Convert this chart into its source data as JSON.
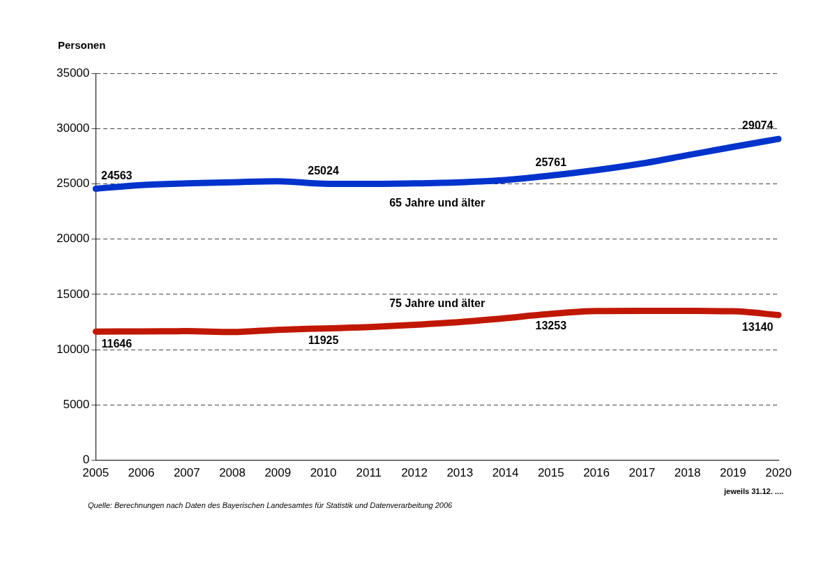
{
  "chart_data": {
    "type": "line",
    "ylabel": "Personen",
    "categories": [
      "2005",
      "2006",
      "2007",
      "2008",
      "2009",
      "2010",
      "2011",
      "2012",
      "2013",
      "2014",
      "2015",
      "2016",
      "2017",
      "2018",
      "2019",
      "2020"
    ],
    "series": [
      {
        "name": "65 Jahre und älter",
        "color": "#0033cc",
        "values": [
          24563,
          24900,
          25050,
          25150,
          25250,
          25024,
          25000,
          25050,
          25150,
          25350,
          25761,
          26250,
          26850,
          27600,
          28350,
          29074
        ],
        "value_labels": [
          "24563",
          null,
          null,
          null,
          null,
          "25024",
          null,
          null,
          null,
          null,
          "25761",
          null,
          null,
          null,
          null,
          "29074"
        ]
      },
      {
        "name": "75 Jahre und älter",
        "color": "#c01800",
        "values": [
          11646,
          11650,
          11680,
          11600,
          11800,
          11925,
          12050,
          12250,
          12500,
          12850,
          13253,
          13500,
          13520,
          13510,
          13480,
          13140
        ],
        "value_labels": [
          "11646",
          null,
          null,
          null,
          null,
          "11925",
          null,
          null,
          null,
          null,
          "13253",
          null,
          null,
          null,
          null,
          "13140"
        ]
      }
    ],
    "ylim": [
      0,
      35000
    ],
    "yticks": [
      0,
      5000,
      10000,
      15000,
      20000,
      25000,
      30000,
      35000
    ],
    "grid": "y",
    "legend": false,
    "marker": "none",
    "line_style": "solid",
    "annotations": [
      "jeweils 31.12. ....",
      "Quelle: Berechnungen nach Daten des Bayerischen Landesamtes für Statistik und Datenverarbeitung 2006"
    ]
  }
}
